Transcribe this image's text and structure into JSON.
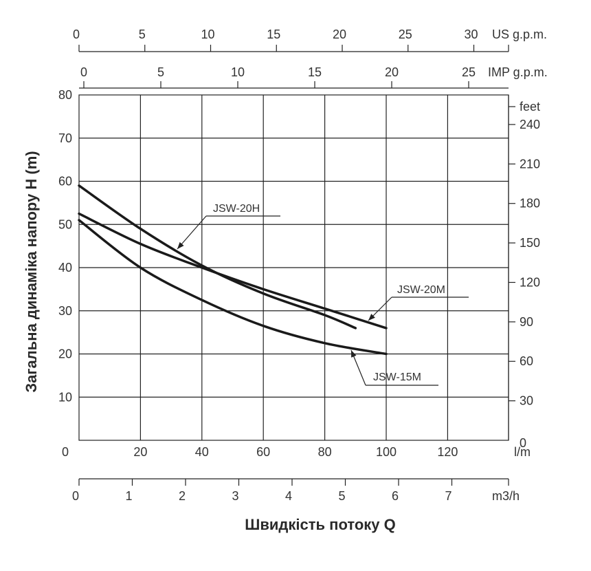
{
  "chart_data": {
    "type": "line",
    "ylabel": "Загальна динаміка напору H (m)",
    "xlabel": "Швидкість потоку Q",
    "x_unit": "l/m",
    "xlim": [
      0,
      140
    ],
    "ylim": [
      0,
      80
    ],
    "x_ticks": [
      "0",
      "20",
      "40",
      "60",
      "80",
      "100",
      "120"
    ],
    "y_ticks": [
      "10",
      "20",
      "30",
      "40",
      "50",
      "60",
      "70",
      "80"
    ],
    "grid": true,
    "top_axes": [
      {
        "unit": "US g.p.m.",
        "ticks": [
          "0",
          "5",
          "10",
          "15",
          "20",
          "25",
          "30"
        ]
      },
      {
        "unit": "IMP g.p.m.",
        "ticks": [
          "0",
          "5",
          "10",
          "15",
          "20",
          "25"
        ]
      }
    ],
    "bottom_axis": {
      "unit": "m3/h",
      "ticks": [
        "0",
        "1",
        "2",
        "3",
        "4",
        "5",
        "6",
        "7"
      ]
    },
    "right_axis": {
      "unit": "feet",
      "ticks": [
        "240",
        "210",
        "180",
        "150",
        "120",
        "90",
        "60",
        "30",
        "0"
      ]
    },
    "series": [
      {
        "name": "JSW-20H",
        "x": [
          0,
          20,
          40,
          60,
          80,
          90
        ],
        "y": [
          59,
          49,
          40.5,
          34,
          29,
          26
        ]
      },
      {
        "name": "JSW-20M",
        "x": [
          0,
          20,
          40,
          60,
          80,
          100
        ],
        "y": [
          52.5,
          45.5,
          40,
          35,
          30.5,
          26
        ]
      },
      {
        "name": "JSW-15M",
        "x": [
          0,
          20,
          40,
          60,
          80,
          100
        ],
        "y": [
          51,
          40,
          32.5,
          26.5,
          22.5,
          20
        ]
      }
    ]
  }
}
